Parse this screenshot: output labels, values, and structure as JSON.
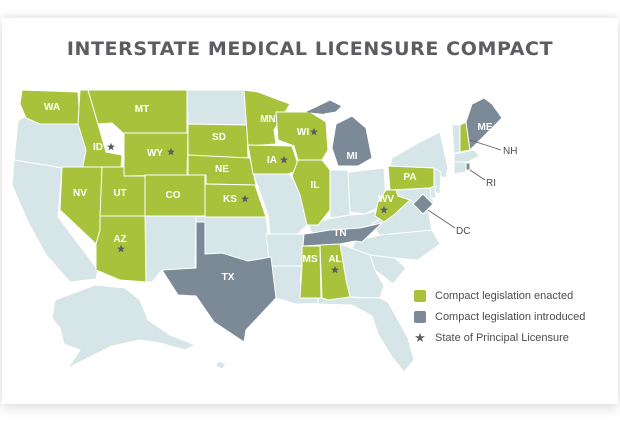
{
  "title": "INTERSTATE MEDICAL LICENSURE COMPACT",
  "colors": {
    "enacted": "#a8c23c",
    "introduced": "#7b8a96",
    "other": "#d5e5e8",
    "star": "#5b5d60"
  },
  "legend": [
    {
      "label": "Compact legislation enacted",
      "swatch": "enacted"
    },
    {
      "label": "Compact legislation introduced",
      "swatch": "introduced"
    },
    {
      "label": "State of Principal Licensure",
      "swatch": "star"
    }
  ],
  "states": {
    "WA": {
      "label": "WA",
      "status": "enacted",
      "principal": false
    },
    "ID": {
      "label": "ID",
      "status": "enacted",
      "principal": true
    },
    "MT": {
      "label": "MT",
      "status": "enacted",
      "principal": false
    },
    "WY": {
      "label": "WY",
      "status": "enacted",
      "principal": true
    },
    "NV": {
      "label": "NV",
      "status": "enacted",
      "principal": false
    },
    "UT": {
      "label": "UT",
      "status": "enacted",
      "principal": false
    },
    "CO": {
      "label": "CO",
      "status": "enacted",
      "principal": false
    },
    "AZ": {
      "label": "AZ",
      "status": "enacted",
      "principal": true
    },
    "SD": {
      "label": "SD",
      "status": "enacted",
      "principal": false
    },
    "NE": {
      "label": "NE",
      "status": "enacted",
      "principal": false
    },
    "KS": {
      "label": "KS",
      "status": "enacted",
      "principal": true
    },
    "MN": {
      "label": "MN",
      "status": "enacted",
      "principal": false
    },
    "IA": {
      "label": "IA",
      "status": "enacted",
      "principal": true
    },
    "WI": {
      "label": "WI",
      "status": "enacted",
      "principal": true
    },
    "IL": {
      "label": "IL",
      "status": "enacted",
      "principal": false
    },
    "MS": {
      "label": "MS",
      "status": "enacted",
      "principal": false
    },
    "AL": {
      "label": "AL",
      "status": "enacted",
      "principal": true
    },
    "PA": {
      "label": "PA",
      "status": "enacted",
      "principal": false
    },
    "WV": {
      "label": "WV",
      "status": "enacted",
      "principal": true
    },
    "NH": {
      "label": "NH",
      "status": "enacted",
      "principal": false
    },
    "MI": {
      "label": "MI",
      "status": "introduced",
      "principal": false
    },
    "TX": {
      "label": "TX",
      "status": "introduced",
      "principal": false
    },
    "TN": {
      "label": "TN",
      "status": "introduced",
      "principal": false
    },
    "ME": {
      "label": "ME",
      "status": "introduced",
      "principal": false
    },
    "DC": {
      "label": "DC",
      "status": "introduced",
      "principal": false
    },
    "RI": {
      "label": "RI",
      "status": "introduced",
      "principal": false
    }
  }
}
